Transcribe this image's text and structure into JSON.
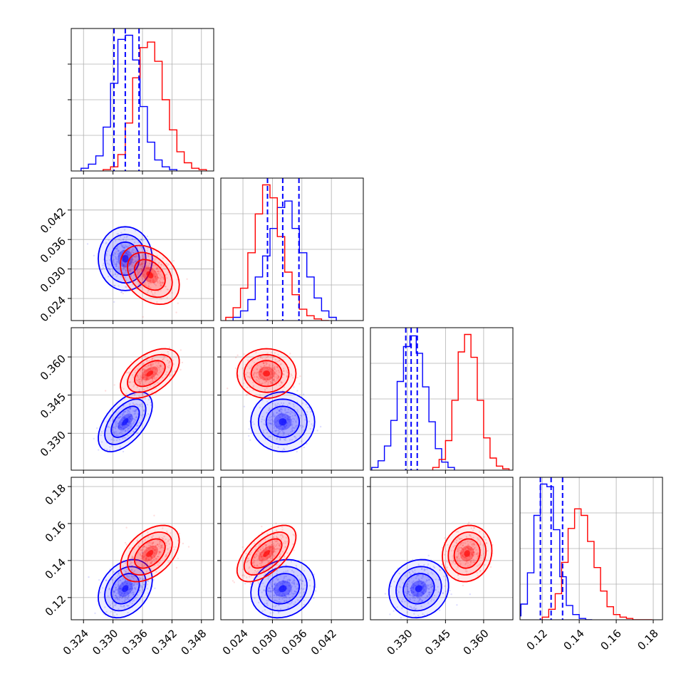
{
  "chart_data": {
    "type": "corner",
    "colors": {
      "series_a": "#0000ff",
      "series_b": "#ff0000"
    },
    "grid": true,
    "params": [
      {
        "range": [
          0.3215,
          0.3505
        ],
        "ticks": [
          "0.324",
          "0.330",
          "0.336",
          "0.342",
          "0.348"
        ],
        "tick_values": [
          0.324,
          0.33,
          0.336,
          0.342,
          0.348
        ]
      },
      {
        "range": [
          0.0195,
          0.0485
        ],
        "ticks": [
          "0.024",
          "0.030",
          "0.036",
          "0.042"
        ],
        "tick_values": [
          0.024,
          0.03,
          0.036,
          0.042
        ]
      },
      {
        "range": [
          0.3155,
          0.3715
        ],
        "ticks": [
          "0.330",
          "0.345",
          "0.360"
        ],
        "tick_values": [
          0.33,
          0.345,
          0.36
        ]
      },
      {
        "range": [
          0.108,
          0.185
        ],
        "ticks": [
          "0.12",
          "0.14",
          "0.16",
          "0.18"
        ],
        "tick_values": [
          0.12,
          0.14,
          0.16,
          0.18
        ]
      }
    ],
    "series": [
      {
        "color": "#0000ff",
        "mean": [
          0.3325,
          0.0321,
          0.3345,
          0.1248
        ],
        "sd": [
          0.0022,
          0.0026,
          0.0047,
          0.0063
        ],
        "corr": [
          [
            1.0,
            0.0,
            0.55,
            0.3
          ],
          [
            0.0,
            1.0,
            0.0,
            0.15
          ],
          [
            0.55,
            0.0,
            1.0,
            0.1
          ],
          [
            0.3,
            0.15,
            0.1,
            1.0
          ]
        ],
        "quantiles": [
          [
            0.3302,
            0.3325,
            0.3353
          ],
          [
            0.029,
            0.0321,
            0.0354
          ],
          [
            0.3294,
            0.3315,
            0.3339
          ],
          [
            0.119,
            0.1248,
            0.131
          ]
        ],
        "hist_bins": [
          [
            0.3235,
            0.325,
            0.3265,
            0.328,
            0.3295,
            0.331,
            0.3325,
            0.334,
            0.3355,
            0.337,
            0.3385,
            0.34,
            0.3415,
            0.343
          ],
          [
            0.022,
            0.0235,
            0.025,
            0.0265,
            0.028,
            0.0295,
            0.031,
            0.0325,
            0.034,
            0.0355,
            0.037,
            0.0385,
            0.04,
            0.0415,
            0.043
          ],
          [
            0.316,
            0.3185,
            0.321,
            0.3235,
            0.326,
            0.3285,
            0.331,
            0.3335,
            0.336,
            0.3385,
            0.341,
            0.3435,
            0.346,
            0.3485
          ],
          [
            0.105,
            0.1085,
            0.112,
            0.1155,
            0.119,
            0.1225,
            0.126,
            0.1295,
            0.133,
            0.1365,
            0.14,
            0.1435,
            0.147
          ]
        ],
        "hist_counts": [
          [
            2,
            5,
            11,
            32,
            64,
            96,
            99,
            81,
            47,
            21,
            8,
            3,
            1
          ],
          [
            2,
            6,
            13,
            27,
            40,
            57,
            70,
            74,
            57,
            42,
            27,
            14,
            6,
            2
          ],
          [
            2,
            7,
            18,
            37,
            66,
            92,
            100,
            87,
            62,
            36,
            16,
            6,
            2
          ],
          [
            3,
            12,
            36,
            80,
            104,
            102,
            69,
            33,
            11,
            4,
            1,
            0
          ]
        ]
      },
      {
        "color": "#ff0000",
        "mean": [
          0.3375,
          0.0288,
          0.3535,
          0.1438
        ],
        "sd": [
          0.0024,
          0.0024,
          0.0039,
          0.0061
        ],
        "corr": [
          [
            1.0,
            -0.35,
            0.5,
            0.45
          ],
          [
            -0.35,
            1.0,
            0.0,
            0.6
          ],
          [
            0.5,
            0.0,
            1.0,
            0.1
          ],
          [
            0.45,
            0.6,
            0.1,
            1.0
          ]
        ],
        "hist_bins": [
          [
            0.328,
            0.3295,
            0.331,
            0.3325,
            0.334,
            0.3355,
            0.337,
            0.3385,
            0.34,
            0.3415,
            0.343,
            0.3445,
            0.346,
            0.3475,
            0.349
          ],
          [
            0.0205,
            0.022,
            0.0235,
            0.025,
            0.0265,
            0.028,
            0.0295,
            0.031,
            0.0325,
            0.034,
            0.0355,
            0.037,
            0.0385,
            0.04,
            0.0415
          ],
          [
            0.34,
            0.3425,
            0.345,
            0.3475,
            0.35,
            0.3525,
            0.355,
            0.3575,
            0.36,
            0.3625,
            0.365,
            0.3675,
            0.37
          ],
          [
            0.12,
            0.1235,
            0.127,
            0.1305,
            0.134,
            0.1375,
            0.141,
            0.1445,
            0.148,
            0.1515,
            0.155,
            0.1585,
            0.162,
            0.1655,
            0.169,
            0.1725,
            0.176,
            0.1795
          ]
        ],
        "hist_counts": [
          [
            1,
            3,
            12,
            35,
            68,
            90,
            94,
            80,
            52,
            30,
            14,
            6,
            2,
            1
          ],
          [
            2,
            8,
            20,
            42,
            66,
            84,
            76,
            52,
            30,
            16,
            7,
            3,
            1,
            0
          ],
          [
            2,
            8,
            22,
            52,
            88,
            101,
            84,
            52,
            24,
            9,
            3,
            1
          ],
          [
            2,
            8,
            20,
            44,
            70,
            85,
            80,
            60,
            40,
            22,
            10,
            4,
            2,
            1,
            0,
            0,
            0
          ]
        ]
      }
    ]
  }
}
